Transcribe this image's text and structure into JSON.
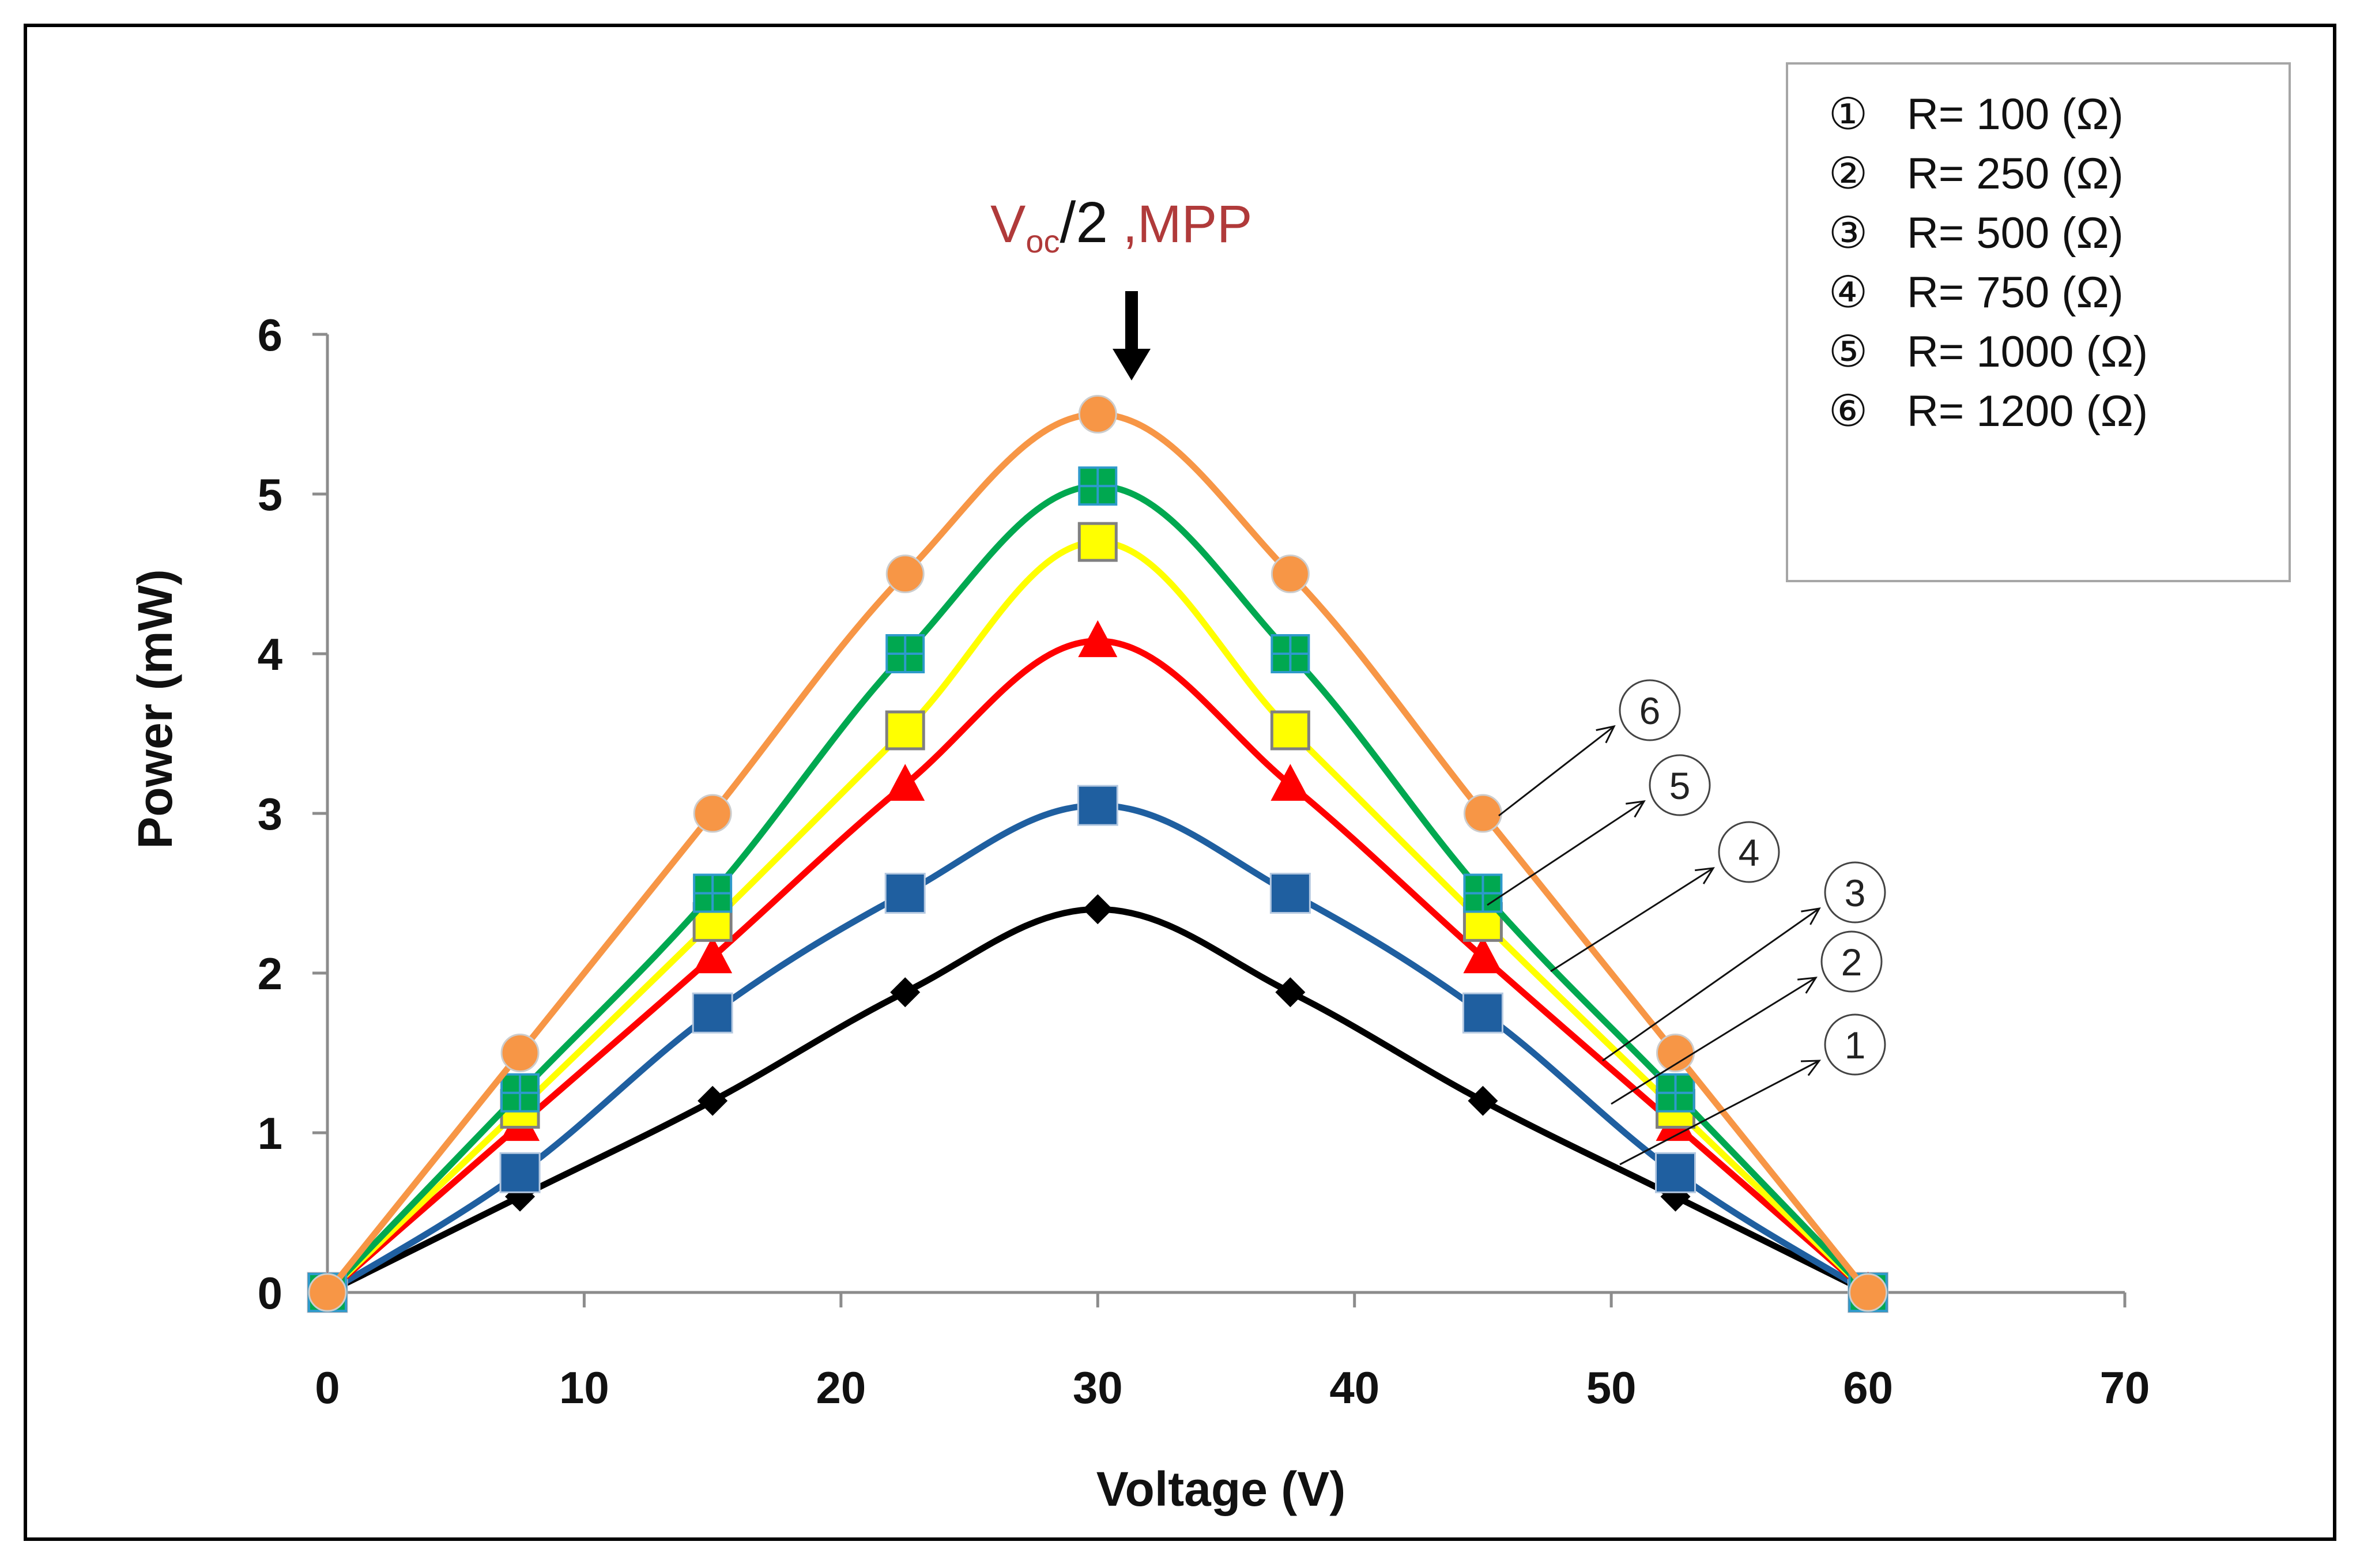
{
  "chart_data": {
    "type": "line",
    "title": "",
    "xlabel": "Voltage (V)",
    "ylabel": "Power  (mW)",
    "xlim": [
      0,
      70
    ],
    "ylim": [
      0,
      6
    ],
    "xticks": [
      "0",
      "10",
      "20",
      "30",
      "40",
      "50",
      "60",
      "70"
    ],
    "yticks": [
      "0",
      "1",
      "2",
      "3",
      "4",
      "5",
      "6"
    ],
    "grid": false,
    "legend_position": "top-right",
    "x": [
      0,
      7.5,
      15,
      22.5,
      30,
      37.5,
      45,
      52.5,
      60
    ],
    "series": [
      {
        "name": "R= 100 (Ω)",
        "marker_label": "①",
        "color": "#000000",
        "marker": "diamond",
        "values": [
          0,
          0.6,
          1.2,
          1.88,
          2.4,
          1.88,
          1.2,
          0.6,
          0
        ]
      },
      {
        "name": "R= 250 (Ω)",
        "marker_label": "②",
        "color": "#1f5fa0",
        "marker": "square",
        "values": [
          0,
          0.75,
          1.75,
          2.5,
          3.05,
          2.5,
          1.75,
          0.75,
          0
        ]
      },
      {
        "name": "R= 500 (Ω)",
        "marker_label": "③",
        "color": "#ff0000",
        "marker": "triangle",
        "values": [
          0,
          1.05,
          2.1,
          3.18,
          4.08,
          3.18,
          2.1,
          1.05,
          0
        ]
      },
      {
        "name": "R= 750 (Ω)",
        "marker_label": "④",
        "color": "#ffff00",
        "marker": "square-outline",
        "values": [
          0,
          1.15,
          2.32,
          3.52,
          4.7,
          3.52,
          2.32,
          1.15,
          0
        ]
      },
      {
        "name": "R= 1000 (Ω)",
        "marker_label": "⑤",
        "color": "#00a850",
        "marker": "square-cross",
        "values": [
          0,
          1.25,
          2.5,
          4.0,
          5.05,
          4.0,
          2.5,
          1.25,
          0
        ]
      },
      {
        "name": "R= 1200 (Ω)",
        "marker_label": "⑥",
        "color": "#f79646",
        "marker": "circle",
        "values": [
          0,
          1.5,
          3.0,
          4.5,
          5.5,
          4.5,
          3.0,
          1.5,
          0
        ]
      }
    ],
    "annotation": {
      "voc": "V",
      "voc_sub": "oc",
      "slash_two": "/2",
      "mpp": " ,MPP"
    }
  }
}
